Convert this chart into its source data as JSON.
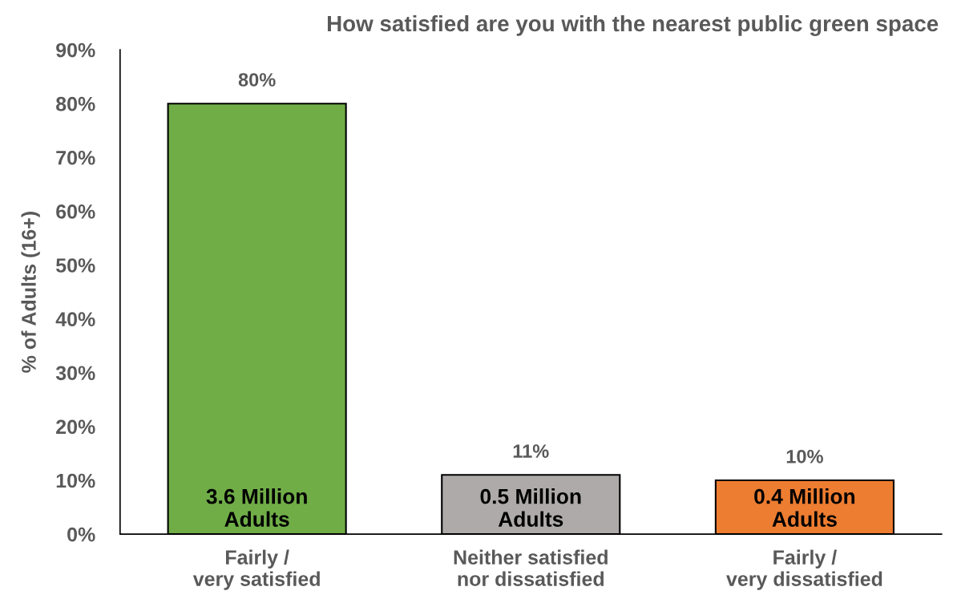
{
  "chart_data": {
    "type": "bar",
    "title": "How satisfied are you with the nearest public green space",
    "ylabel": "% of Adults (16+)",
    "categories": [
      "Fairly /\nvery satisfied",
      "Neither satisfied\nnor dissatisfied",
      "Fairly /\nvery dissatisfied"
    ],
    "values": [
      80,
      11,
      10
    ],
    "colors": [
      "#70ad47",
      "#aeaaaa",
      "#ed7d31"
    ],
    "value_labels": [
      "80%",
      "11%",
      "10%"
    ],
    "annotations": [
      "3.6 Million\nAdults",
      "0.5 Million\nAdults",
      "0.4 Million\nAdults"
    ],
    "ylim": [
      0,
      90
    ],
    "yticks": [
      {
        "value": 0,
        "label": "0%"
      },
      {
        "value": 10,
        "label": "10%"
      },
      {
        "value": 20,
        "label": "20%"
      },
      {
        "value": 30,
        "label": "30%"
      },
      {
        "value": 40,
        "label": "40%"
      },
      {
        "value": 50,
        "label": "50%"
      },
      {
        "value": 60,
        "label": "60%"
      },
      {
        "value": 70,
        "label": "70%"
      },
      {
        "value": 80,
        "label": "80%"
      },
      {
        "value": 90,
        "label": "90%"
      }
    ],
    "grid": false,
    "legend": false
  }
}
